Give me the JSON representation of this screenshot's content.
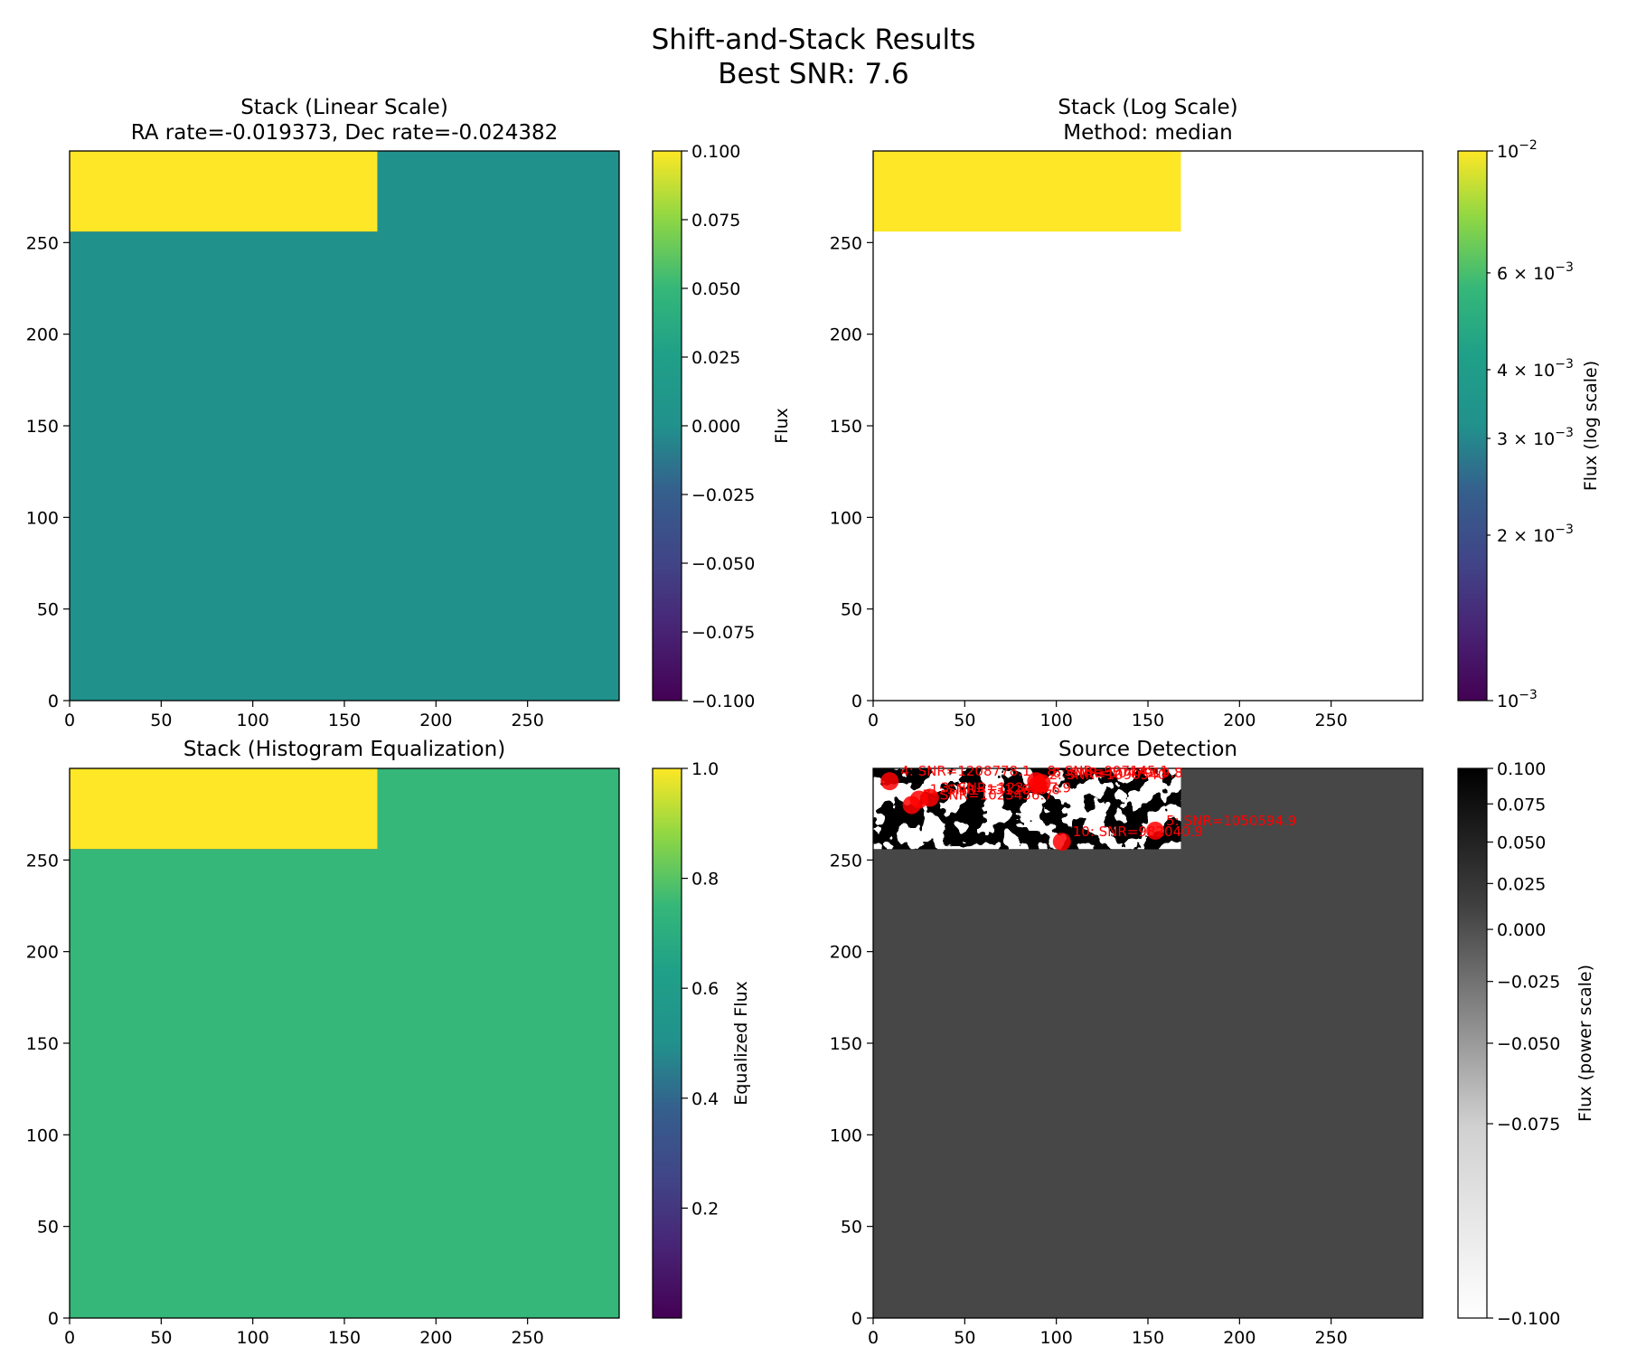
{
  "figure": {
    "suptitle": "Shift-and-Stack Results",
    "suptitle_line2": "Best SNR: 7.6"
  },
  "chart_data": [
    {
      "type": "heatmap",
      "id": "linear",
      "title": "Stack (Linear Scale)",
      "subtitle": "RA rate=-0.019373, Dec rate=-0.024382",
      "xlim": [
        0,
        300
      ],
      "ylim": [
        0,
        300
      ],
      "xticks": [
        "0",
        "50",
        "100",
        "150",
        "200",
        "250"
      ],
      "yticks": [
        "0",
        "50",
        "100",
        "150",
        "200",
        "250"
      ],
      "colormap": "viridis",
      "background_value_color": "#21918c",
      "data_region": {
        "x": [
          0,
          168
        ],
        "y": [
          256,
          300
        ]
      },
      "colorbar": {
        "label": "Flux",
        "range": [
          -0.1,
          0.1
        ],
        "ticks": [
          "0.100",
          "0.075",
          "0.050",
          "0.025",
          "0.000",
          "−0.025",
          "−0.050",
          "−0.075",
          "−0.100"
        ]
      }
    },
    {
      "type": "heatmap",
      "id": "log",
      "title": "Stack (Log Scale)",
      "subtitle": "Method: median",
      "xlim": [
        0,
        300
      ],
      "ylim": [
        0,
        300
      ],
      "xticks": [
        "0",
        "50",
        "100",
        "150",
        "200",
        "250"
      ],
      "yticks": [
        "0",
        "50",
        "100",
        "150",
        "200",
        "250"
      ],
      "colormap": "viridis-log",
      "background_value_color": "#ffffff",
      "data_region": {
        "x": [
          0,
          168
        ],
        "y": [
          256,
          300
        ]
      },
      "colorbar": {
        "label": "Flux (log scale)",
        "scale": "log",
        "range": [
          0.001,
          0.01
        ],
        "major_ticks": [
          {
            "base": "10",
            "exp": "−2",
            "value": 0.01
          },
          {
            "base": "10",
            "exp": "−3",
            "value": 0.001
          }
        ],
        "minor_ticks": [
          {
            "mant": "6",
            "exp": "−3",
            "value": 0.006
          },
          {
            "mant": "4",
            "exp": "−3",
            "value": 0.004
          },
          {
            "mant": "3",
            "exp": "−3",
            "value": 0.003
          },
          {
            "mant": "2",
            "exp": "−3",
            "value": 0.002
          }
        ]
      }
    },
    {
      "type": "heatmap",
      "id": "histeq",
      "title": "Stack (Histogram Equalization)",
      "xlim": [
        0,
        300
      ],
      "ylim": [
        0,
        300
      ],
      "xticks": [
        "0",
        "50",
        "100",
        "150",
        "200",
        "250"
      ],
      "yticks": [
        "0",
        "50",
        "100",
        "150",
        "200",
        "250"
      ],
      "colormap": "viridis",
      "background_value_color": "#35b779",
      "data_region": {
        "x": [
          0,
          168
        ],
        "y": [
          256,
          300
        ]
      },
      "colorbar": {
        "label": "Equalized Flux",
        "range": [
          0,
          1
        ],
        "ticks": [
          {
            "label": "1.0",
            "value": 1.0
          },
          {
            "label": "0.8",
            "value": 0.8
          },
          {
            "label": "0.6",
            "value": 0.6
          },
          {
            "label": "0.4",
            "value": 0.4
          },
          {
            "label": "0.2",
            "value": 0.2
          }
        ]
      }
    },
    {
      "type": "heatmap",
      "id": "detect",
      "title": "Source Detection",
      "xlim": [
        0,
        300
      ],
      "ylim": [
        0,
        300
      ],
      "xticks": [
        "0",
        "50",
        "100",
        "150",
        "200",
        "250"
      ],
      "yticks": [
        "0",
        "50",
        "100",
        "150",
        "200",
        "250"
      ],
      "colormap": "gray_r",
      "background_value_color": "#474747",
      "data_region": {
        "x": [
          0,
          168
        ],
        "y": [
          256,
          300
        ]
      },
      "colorbar": {
        "label": "Flux (power scale)",
        "scale": "power",
        "range": [
          -0.1,
          0.1
        ],
        "ticks": [
          {
            "label": "0.100",
            "value": 0.1
          },
          {
            "label": "0.075",
            "value": 0.075
          },
          {
            "label": "0.050",
            "value": 0.05
          },
          {
            "label": "0.025",
            "value": 0.025
          },
          {
            "label": "0.000",
            "value": 0.0
          },
          {
            "label": "−0.025",
            "value": -0.025
          },
          {
            "label": "−0.050",
            "value": -0.05
          },
          {
            "label": "−0.075",
            "value": -0.075
          },
          {
            "label": "−0.100",
            "value": -0.1
          }
        ]
      },
      "detections": [
        {
          "x": 9,
          "y": 293,
          "label": "4: SNR=1208778.1"
        },
        {
          "x": 89,
          "y": 293,
          "label": "8: SNR=997145.1"
        },
        {
          "x": 92,
          "y": 292,
          "label": "6: SNR=1047919.8"
        },
        {
          "x": 90,
          "y": 291,
          "label": "2: SNR=1090540"
        },
        {
          "x": 31,
          "y": 284,
          "label": "3: SNR=1234567.9"
        },
        {
          "x": 25,
          "y": 283,
          "label": "1: SNR=1312645.6"
        },
        {
          "x": 21,
          "y": 280,
          "label": "7: SNR=1023456.7"
        },
        {
          "x": 154,
          "y": 266,
          "label": "5: SNR=1050594.9"
        },
        {
          "x": 103,
          "y": 260,
          "label": "10: SNR=982040.9"
        }
      ]
    }
  ]
}
